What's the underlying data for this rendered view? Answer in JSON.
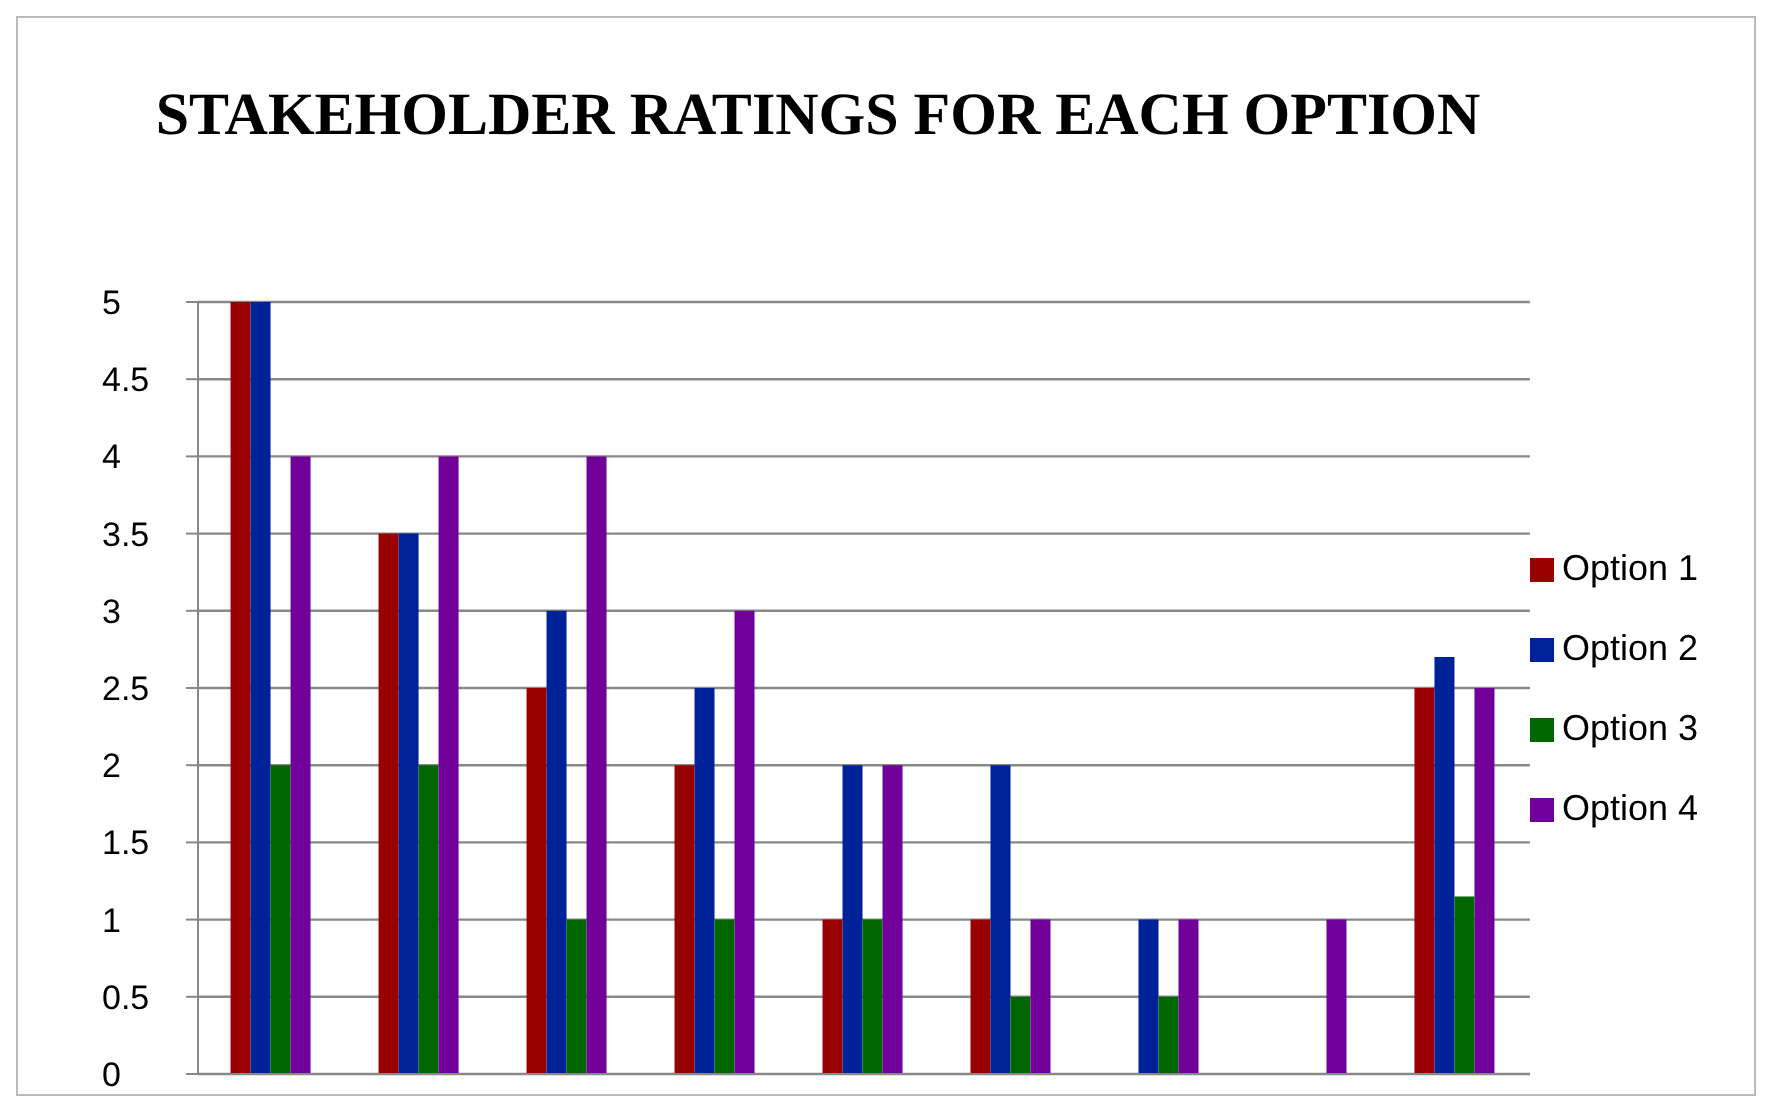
{
  "chart_data": {
    "type": "bar",
    "title": "STAKEHOLDER RATINGS FOR EACH OPTION",
    "categories": [
      null,
      null,
      null,
      null,
      null,
      null,
      null,
      null,
      null
    ],
    "series": [
      {
        "name": "Option 1",
        "color": "#990000",
        "values": [
          5,
          3.5,
          2.5,
          2,
          1,
          1,
          0,
          0,
          2.5
        ]
      },
      {
        "name": "Option 2",
        "color": "#002299",
        "values": [
          5,
          3.5,
          3,
          2.5,
          2,
          2,
          1,
          0,
          2.7
        ]
      },
      {
        "name": "Option 3",
        "color": "#006600",
        "values": [
          2,
          2,
          1,
          1,
          1,
          0.5,
          0.5,
          0,
          1.15
        ]
      },
      {
        "name": "Option 4",
        "color": "#700099",
        "values": [
          4,
          4,
          4,
          3,
          2,
          1,
          1,
          1,
          2.5
        ]
      }
    ],
    "ylim": [
      0,
      5
    ],
    "yticks": [
      0,
      0.5,
      1,
      1.5,
      2,
      2.5,
      3,
      3.5,
      4,
      4.5,
      5
    ],
    "grid": "y",
    "legend": "right"
  }
}
